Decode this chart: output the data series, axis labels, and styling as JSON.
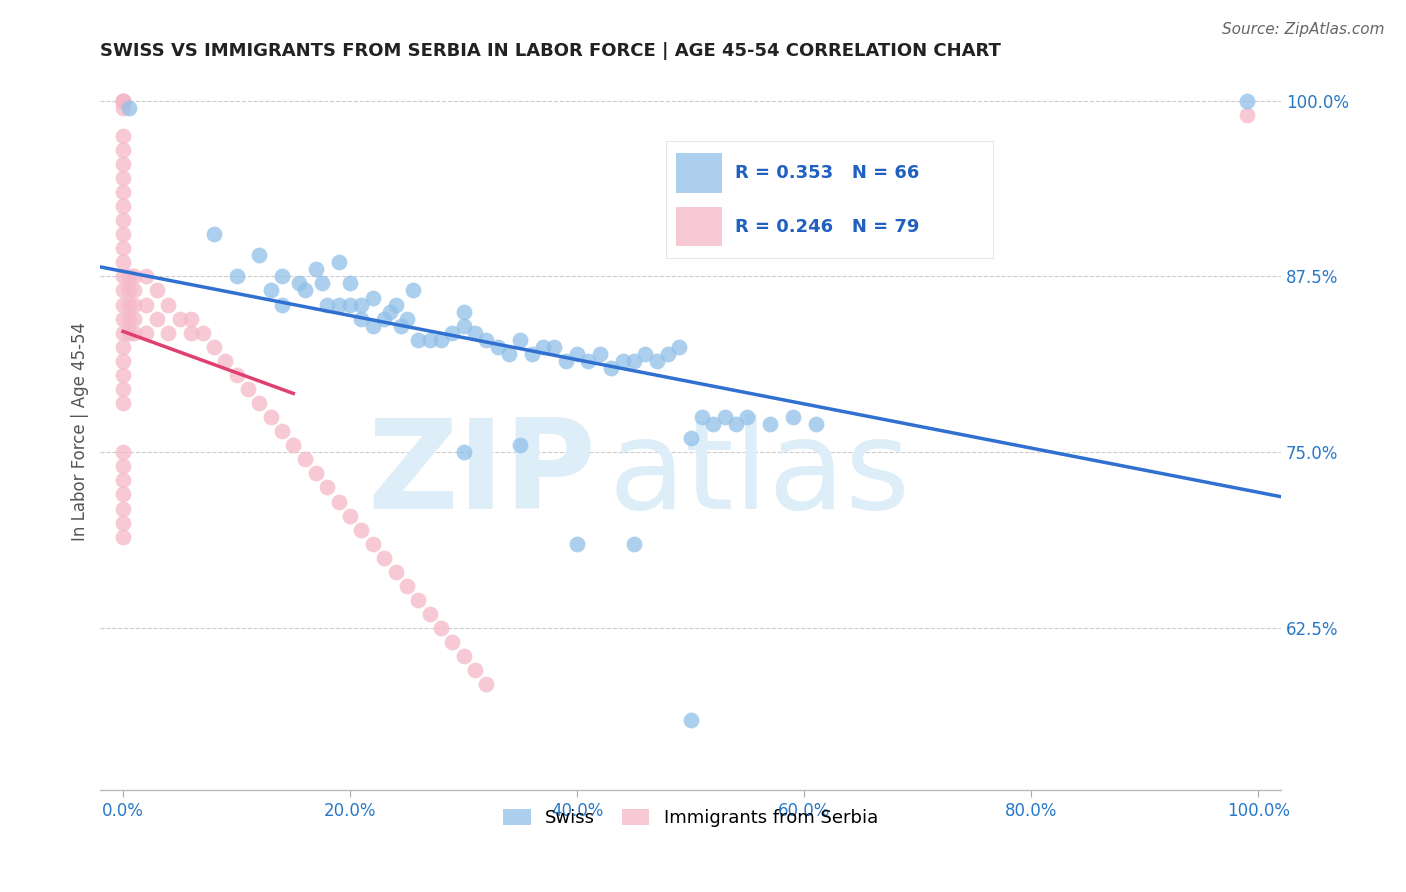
{
  "title": "SWISS VS IMMIGRANTS FROM SERBIA IN LABOR FORCE | AGE 45-54 CORRELATION CHART",
  "source": "Source: ZipAtlas.com",
  "ylabel": "In Labor Force | Age 45-54",
  "xlim": [
    -0.02,
    1.02
  ],
  "ylim": [
    0.51,
    1.02
  ],
  "xticks": [
    0.0,
    0.2,
    0.4,
    0.6,
    0.8,
    1.0
  ],
  "xticklabels": [
    "0.0%",
    "20.0%",
    "40.0%",
    "60.0%",
    "80.0%",
    "100.0%"
  ],
  "ytick_positions": [
    0.625,
    0.75,
    0.875,
    1.0
  ],
  "ytick_labels": [
    "62.5%",
    "75.0%",
    "87.5%",
    "100.0%"
  ],
  "swiss_color": "#90c0e8",
  "serbia_color": "#f5b8c8",
  "swiss_line_color": "#3070d0",
  "serbia_line_color": "#e04070",
  "swiss_R": 0.353,
  "swiss_N": 66,
  "serbia_R": 0.246,
  "serbia_N": 79,
  "legend_label_swiss": "Swiss",
  "legend_label_serbia": "Immigrants from Serbia",
  "watermark_zip": "ZIP",
  "watermark_atlas": "atlas",
  "swiss_x": [
    0.005,
    0.08,
    0.1,
    0.12,
    0.13,
    0.14,
    0.14,
    0.155,
    0.16,
    0.17,
    0.175,
    0.18,
    0.19,
    0.19,
    0.2,
    0.2,
    0.21,
    0.21,
    0.22,
    0.22,
    0.23,
    0.235,
    0.24,
    0.245,
    0.25,
    0.255,
    0.26,
    0.27,
    0.28,
    0.29,
    0.3,
    0.3,
    0.31,
    0.32,
    0.33,
    0.34,
    0.35,
    0.36,
    0.37,
    0.38,
    0.39,
    0.4,
    0.41,
    0.42,
    0.43,
    0.44,
    0.45,
    0.46,
    0.47,
    0.48,
    0.49,
    0.5,
    0.51,
    0.52,
    0.53,
    0.54,
    0.55,
    0.57,
    0.59,
    0.61,
    0.3,
    0.35,
    0.4,
    0.45,
    0.5,
    0.99
  ],
  "swiss_y": [
    0.995,
    0.905,
    0.875,
    0.89,
    0.865,
    0.875,
    0.855,
    0.87,
    0.865,
    0.88,
    0.87,
    0.855,
    0.885,
    0.855,
    0.855,
    0.87,
    0.845,
    0.855,
    0.84,
    0.86,
    0.845,
    0.85,
    0.855,
    0.84,
    0.845,
    0.865,
    0.83,
    0.83,
    0.83,
    0.835,
    0.84,
    0.85,
    0.835,
    0.83,
    0.825,
    0.82,
    0.83,
    0.82,
    0.825,
    0.825,
    0.815,
    0.82,
    0.815,
    0.82,
    0.81,
    0.815,
    0.815,
    0.82,
    0.815,
    0.82,
    0.825,
    0.76,
    0.775,
    0.77,
    0.775,
    0.77,
    0.775,
    0.77,
    0.775,
    0.77,
    0.75,
    0.755,
    0.685,
    0.685,
    0.56,
    1.0
  ],
  "serbia_x": [
    0.0,
    0.0,
    0.0,
    0.0,
    0.0,
    0.0,
    0.0,
    0.0,
    0.0,
    0.0,
    0.0,
    0.0,
    0.0,
    0.0,
    0.0,
    0.0,
    0.0,
    0.0,
    0.0,
    0.0,
    0.0,
    0.0,
    0.0,
    0.0,
    0.0,
    0.005,
    0.005,
    0.005,
    0.005,
    0.005,
    0.01,
    0.01,
    0.01,
    0.01,
    0.01,
    0.02,
    0.02,
    0.02,
    0.03,
    0.03,
    0.04,
    0.04,
    0.05,
    0.06,
    0.06,
    0.07,
    0.08,
    0.09,
    0.1,
    0.11,
    0.12,
    0.13,
    0.14,
    0.15,
    0.16,
    0.17,
    0.18,
    0.19,
    0.2,
    0.21,
    0.22,
    0.23,
    0.24,
    0.25,
    0.26,
    0.27,
    0.28,
    0.29,
    0.3,
    0.31,
    0.32,
    0.0,
    0.0,
    0.0,
    0.0,
    0.0,
    0.0,
    0.0,
    0.99
  ],
  "serbia_y": [
    1.0,
    1.0,
    1.0,
    1.0,
    0.995,
    0.975,
    0.965,
    0.955,
    0.945,
    0.935,
    0.925,
    0.915,
    0.905,
    0.895,
    0.885,
    0.875,
    0.865,
    0.855,
    0.845,
    0.835,
    0.825,
    0.815,
    0.805,
    0.795,
    0.785,
    0.875,
    0.865,
    0.855,
    0.845,
    0.835,
    0.875,
    0.865,
    0.855,
    0.845,
    0.835,
    0.875,
    0.855,
    0.835,
    0.865,
    0.845,
    0.855,
    0.835,
    0.845,
    0.835,
    0.845,
    0.835,
    0.825,
    0.815,
    0.805,
    0.795,
    0.785,
    0.775,
    0.765,
    0.755,
    0.745,
    0.735,
    0.725,
    0.715,
    0.705,
    0.695,
    0.685,
    0.675,
    0.665,
    0.655,
    0.645,
    0.635,
    0.625,
    0.615,
    0.605,
    0.595,
    0.585,
    0.75,
    0.74,
    0.73,
    0.72,
    0.71,
    0.7,
    0.69,
    0.99
  ]
}
